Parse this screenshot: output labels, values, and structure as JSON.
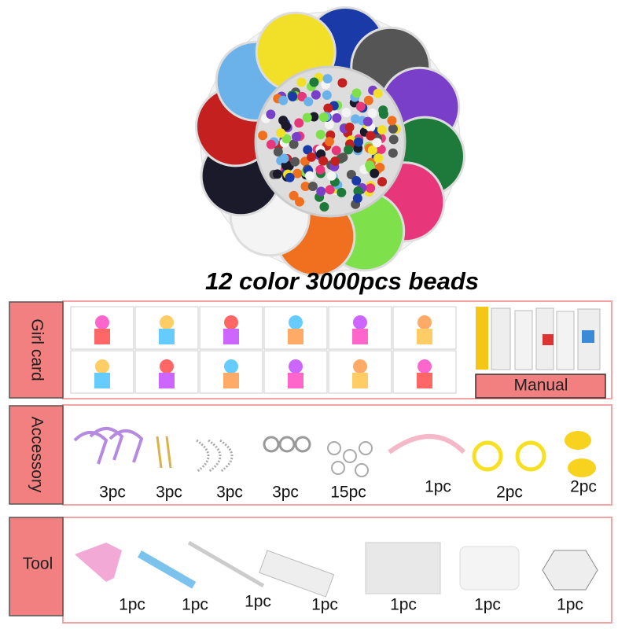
{
  "title": "12 color 3000pcs beads",
  "girl_card": {
    "label": "Girl card",
    "manual": "Manual"
  },
  "accessory": {
    "label": "Accessory",
    "items": [
      "3pc",
      "3pc",
      "3pc",
      "3pc",
      "15pc",
      "1pc",
      "2pc",
      "2pc"
    ]
  },
  "tool": {
    "label": "Tool",
    "items": [
      "1pc",
      "1pc",
      "1pc",
      "1pc",
      "1pc",
      "1pc",
      "1pc"
    ]
  }
}
